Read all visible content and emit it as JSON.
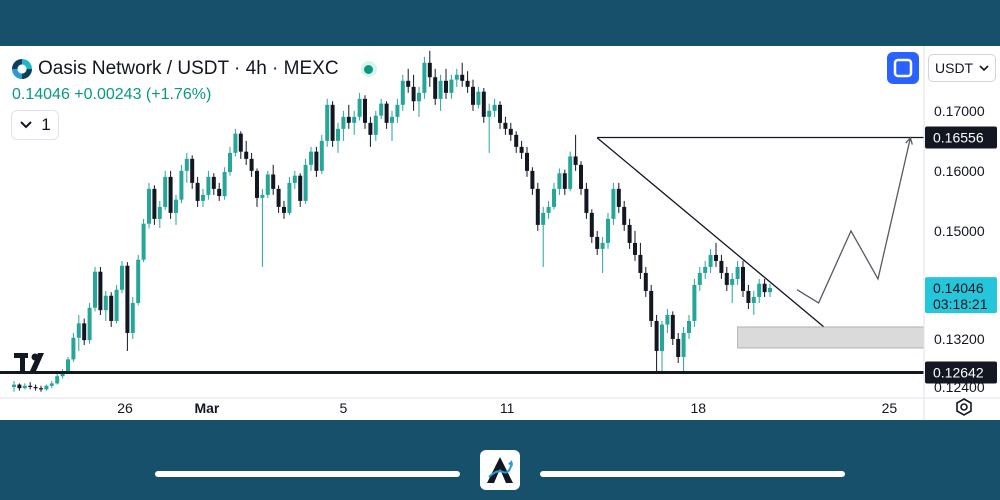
{
  "header": {
    "title": "Oasis Network / USDT · 4h · MEXC",
    "price_line": "0.14046 +0.00243 (+1.76%)",
    "interval_value": "1",
    "currency": "USDT"
  },
  "colors": {
    "up": "#26a69a",
    "down": "#131722",
    "accent": "#2962ff",
    "background": "#16506a"
  },
  "icons": {
    "logo": "oasis-logo-icon",
    "status": "market-open-icon",
    "interval": "chevron-down-icon",
    "fullscreen": "fullscreen-icon",
    "currency": "chevron-down-icon",
    "settings": "settings-hexagon-icon",
    "brand": "tradingview-logo-icon",
    "app": "app-logo-icon"
  },
  "chart_data": {
    "type": "candlestick",
    "ylim": [
      0.1225,
      0.1808
    ],
    "x_ticks": [
      {
        "label": "26",
        "day": 26
      },
      {
        "label": "Mar",
        "day": 29
      },
      {
        "label": "5",
        "day": 34
      },
      {
        "label": "11",
        "day": 40
      },
      {
        "label": "18",
        "day": 47
      },
      {
        "label": "25",
        "day": 54
      }
    ],
    "y_ticks": [
      "0.17000",
      "0.16000",
      "0.15000",
      "0.13200",
      "0.12400"
    ],
    "y_tick_values": [
      0.17,
      0.16,
      0.15,
      0.132,
      0.124
    ],
    "price_labels": [
      {
        "text": "0.16556",
        "value": 0.16556,
        "style": "dark"
      },
      {
        "text": "0.12642",
        "value": 0.12642,
        "style": "dark"
      }
    ],
    "current_price": {
      "value": 0.14046,
      "text": "0.14046",
      "countdown": "03:18:21"
    },
    "candles_ohlc": [
      [
        0.124,
        0.125,
        0.1232,
        0.1244
      ],
      [
        0.1244,
        0.1246,
        0.1234,
        0.1238
      ],
      [
        0.1238,
        0.1246,
        0.1236,
        0.1242
      ],
      [
        0.1242,
        0.1248,
        0.1236,
        0.124
      ],
      [
        0.124,
        0.1244,
        0.1234,
        0.1238
      ],
      [
        0.1238,
        0.1242,
        0.1232,
        0.1236
      ],
      [
        0.1236,
        0.1244,
        0.1234,
        0.1242
      ],
      [
        0.1242,
        0.125,
        0.1238,
        0.1246
      ],
      [
        0.1246,
        0.1262,
        0.1244,
        0.1258
      ],
      [
        0.1258,
        0.127,
        0.1254,
        0.1266
      ],
      [
        0.1266,
        0.129,
        0.1262,
        0.1286
      ],
      [
        0.1286,
        0.133,
        0.1282,
        0.1322
      ],
      [
        0.1322,
        0.136,
        0.13,
        0.1346
      ],
      [
        0.1346,
        0.1354,
        0.131,
        0.1318
      ],
      [
        0.1318,
        0.138,
        0.1312,
        0.1372
      ],
      [
        0.1372,
        0.144,
        0.1366,
        0.1432
      ],
      [
        0.1432,
        0.144,
        0.136,
        0.1368
      ],
      [
        0.1368,
        0.14,
        0.135,
        0.1392
      ],
      [
        0.1392,
        0.1398,
        0.134,
        0.135
      ],
      [
        0.135,
        0.141,
        0.1346,
        0.1402
      ],
      [
        0.1402,
        0.145,
        0.1396,
        0.1442
      ],
      [
        0.1442,
        0.1448,
        0.13,
        0.133
      ],
      [
        0.133,
        0.139,
        0.132,
        0.138
      ],
      [
        0.138,
        0.146,
        0.1376,
        0.1452
      ],
      [
        0.1452,
        0.152,
        0.1448,
        0.1512
      ],
      [
        0.1512,
        0.158,
        0.1504,
        0.157
      ],
      [
        0.157,
        0.1576,
        0.151,
        0.152
      ],
      [
        0.152,
        0.155,
        0.1505,
        0.154
      ],
      [
        0.154,
        0.16,
        0.1535,
        0.159
      ],
      [
        0.159,
        0.16,
        0.152,
        0.153
      ],
      [
        0.153,
        0.156,
        0.151,
        0.1552
      ],
      [
        0.1552,
        0.161,
        0.1546,
        0.16
      ],
      [
        0.16,
        0.163,
        0.158,
        0.162
      ],
      [
        0.162,
        0.1626,
        0.157,
        0.158
      ],
      [
        0.158,
        0.159,
        0.154,
        0.155
      ],
      [
        0.155,
        0.157,
        0.154,
        0.156
      ],
      [
        0.156,
        0.16,
        0.1552,
        0.159
      ],
      [
        0.159,
        0.1596,
        0.156,
        0.157
      ],
      [
        0.157,
        0.158,
        0.155,
        0.1558
      ],
      [
        0.1558,
        0.1606,
        0.1552,
        0.1598
      ],
      [
        0.1598,
        0.164,
        0.1592,
        0.163
      ],
      [
        0.163,
        0.167,
        0.1624,
        0.1662
      ],
      [
        0.1662,
        0.1666,
        0.162,
        0.1632
      ],
      [
        0.1632,
        0.165,
        0.161,
        0.162
      ],
      [
        0.162,
        0.163,
        0.159,
        0.16
      ],
      [
        0.16,
        0.1604,
        0.154,
        0.1555
      ],
      [
        0.1555,
        0.157,
        0.144,
        0.156
      ],
      [
        0.156,
        0.16,
        0.1555,
        0.1594
      ],
      [
        0.1594,
        0.161,
        0.156,
        0.157
      ],
      [
        0.157,
        0.1576,
        0.153,
        0.154
      ],
      [
        0.154,
        0.155,
        0.152,
        0.153
      ],
      [
        0.153,
        0.159,
        0.1526,
        0.158
      ],
      [
        0.158,
        0.16,
        0.157,
        0.1592
      ],
      [
        0.1592,
        0.1596,
        0.154,
        0.155
      ],
      [
        0.155,
        0.162,
        0.1545,
        0.161
      ],
      [
        0.161,
        0.164,
        0.16,
        0.1632
      ],
      [
        0.1632,
        0.164,
        0.159,
        0.16
      ],
      [
        0.16,
        0.166,
        0.1595,
        0.165
      ],
      [
        0.165,
        0.172,
        0.164,
        0.171
      ],
      [
        0.171,
        0.1716,
        0.164,
        0.165
      ],
      [
        0.165,
        0.168,
        0.163,
        0.167
      ],
      [
        0.167,
        0.17,
        0.165,
        0.169
      ],
      [
        0.169,
        0.171,
        0.167,
        0.168
      ],
      [
        0.168,
        0.17,
        0.166,
        0.169
      ],
      [
        0.169,
        0.173,
        0.1684,
        0.172
      ],
      [
        0.172,
        0.1726,
        0.167,
        0.168
      ],
      [
        0.168,
        0.169,
        0.164,
        0.166
      ],
      [
        0.166,
        0.17,
        0.165,
        0.1692
      ],
      [
        0.1692,
        0.172,
        0.1686,
        0.1712
      ],
      [
        0.1712,
        0.1716,
        0.167,
        0.168
      ],
      [
        0.168,
        0.17,
        0.165,
        0.169
      ],
      [
        0.169,
        0.172,
        0.168,
        0.171
      ],
      [
        0.171,
        0.176,
        0.17,
        0.175
      ],
      [
        0.175,
        0.177,
        0.173,
        0.174
      ],
      [
        0.174,
        0.176,
        0.17,
        0.1716
      ],
      [
        0.1716,
        0.174,
        0.169,
        0.173
      ],
      [
        0.173,
        0.179,
        0.172,
        0.178
      ],
      [
        0.178,
        0.18,
        0.174,
        0.1756
      ],
      [
        0.1756,
        0.177,
        0.171,
        0.172
      ],
      [
        0.172,
        0.176,
        0.17,
        0.175
      ],
      [
        0.175,
        0.177,
        0.172,
        0.173
      ],
      [
        0.173,
        0.176,
        0.172,
        0.1752
      ],
      [
        0.1752,
        0.177,
        0.174,
        0.176
      ],
      [
        0.176,
        0.178,
        0.174,
        0.175
      ],
      [
        0.175,
        0.1766,
        0.173,
        0.174
      ],
      [
        0.174,
        0.1752,
        0.17,
        0.171
      ],
      [
        0.171,
        0.174,
        0.1704,
        0.1732
      ],
      [
        0.1732,
        0.1738,
        0.168,
        0.169
      ],
      [
        0.169,
        0.1712,
        0.163,
        0.17
      ],
      [
        0.17,
        0.172,
        0.169,
        0.171
      ],
      [
        0.171,
        0.1716,
        0.167,
        0.168
      ],
      [
        0.168,
        0.169,
        0.166,
        0.167
      ],
      [
        0.167,
        0.168,
        0.165,
        0.166
      ],
      [
        0.166,
        0.1666,
        0.163,
        0.164
      ],
      [
        0.164,
        0.165,
        0.162,
        0.163
      ],
      [
        0.163,
        0.164,
        0.159,
        0.16
      ],
      [
        0.16,
        0.1606,
        0.156,
        0.157
      ],
      [
        0.157,
        0.158,
        0.15,
        0.151
      ],
      [
        0.151,
        0.154,
        0.144,
        0.153
      ],
      [
        0.153,
        0.155,
        0.152,
        0.154
      ],
      [
        0.154,
        0.158,
        0.1536,
        0.157
      ],
      [
        0.157,
        0.1604,
        0.156,
        0.1596
      ],
      [
        0.1596,
        0.1602,
        0.156,
        0.157
      ],
      [
        0.157,
        0.1632,
        0.1566,
        0.1624
      ],
      [
        0.1624,
        0.166,
        0.16,
        0.161
      ],
      [
        0.161,
        0.1616,
        0.156,
        0.157
      ],
      [
        0.157,
        0.158,
        0.152,
        0.153
      ],
      [
        0.153,
        0.1536,
        0.148,
        0.149
      ],
      [
        0.149,
        0.15,
        0.146,
        0.147
      ],
      [
        0.147,
        0.149,
        0.143,
        0.148
      ],
      [
        0.148,
        0.153,
        0.147,
        0.152
      ],
      [
        0.152,
        0.158,
        0.151,
        0.157
      ],
      [
        0.157,
        0.158,
        0.153,
        0.154
      ],
      [
        0.154,
        0.155,
        0.15,
        0.151
      ],
      [
        0.151,
        0.152,
        0.147,
        0.148
      ],
      [
        0.148,
        0.15,
        0.145,
        0.146
      ],
      [
        0.146,
        0.148,
        0.142,
        0.143
      ],
      [
        0.143,
        0.144,
        0.139,
        0.14
      ],
      [
        0.14,
        0.141,
        0.134,
        0.135
      ],
      [
        0.135,
        0.136,
        0.1264,
        0.13
      ],
      [
        0.13,
        0.135,
        0.1264,
        0.1344
      ],
      [
        0.1344,
        0.137,
        0.133,
        0.136
      ],
      [
        0.136,
        0.1366,
        0.131,
        0.132
      ],
      [
        0.132,
        0.133,
        0.128,
        0.129
      ],
      [
        0.129,
        0.134,
        0.1264,
        0.133
      ],
      [
        0.133,
        0.136,
        0.132,
        0.135
      ],
      [
        0.135,
        0.142,
        0.134,
        0.141
      ],
      [
        0.141,
        0.144,
        0.14,
        0.143
      ],
      [
        0.143,
        0.145,
        0.142,
        0.144
      ],
      [
        0.144,
        0.147,
        0.143,
        0.146
      ],
      [
        0.146,
        0.148,
        0.144,
        0.145
      ],
      [
        0.145,
        0.146,
        0.142,
        0.143
      ],
      [
        0.143,
        0.144,
        0.14,
        0.141
      ],
      [
        0.141,
        0.143,
        0.138,
        0.142
      ],
      [
        0.142,
        0.145,
        0.141,
        0.144
      ],
      [
        0.144,
        0.145,
        0.139,
        0.14
      ],
      [
        0.14,
        0.141,
        0.137,
        0.138
      ],
      [
        0.138,
        0.14,
        0.136,
        0.139
      ],
      [
        0.139,
        0.142,
        0.138,
        0.1412
      ],
      [
        0.1412,
        0.142,
        0.139,
        0.1398
      ],
      [
        0.1398,
        0.1412,
        0.139,
        0.1405
      ]
    ],
    "annotations": [
      {
        "type": "horizontal_line",
        "value": 0.12642
      },
      {
        "type": "ray",
        "from_index": 108,
        "to_index": 150,
        "value": 0.16556
      },
      {
        "type": "trendline",
        "points": [
          [
            108,
            0.1655
          ],
          [
            150,
            0.134
          ]
        ]
      },
      {
        "type": "zone",
        "from_index": 134,
        "to_index": 172,
        "y": [
          0.1305,
          0.134
        ]
      },
      {
        "type": "projection",
        "points": [
          [
            145,
            0.1402
          ],
          [
            149,
            0.138
          ],
          [
            155,
            0.15
          ],
          [
            160,
            0.142
          ],
          [
            166,
            0.1655
          ]
        ]
      }
    ]
  }
}
